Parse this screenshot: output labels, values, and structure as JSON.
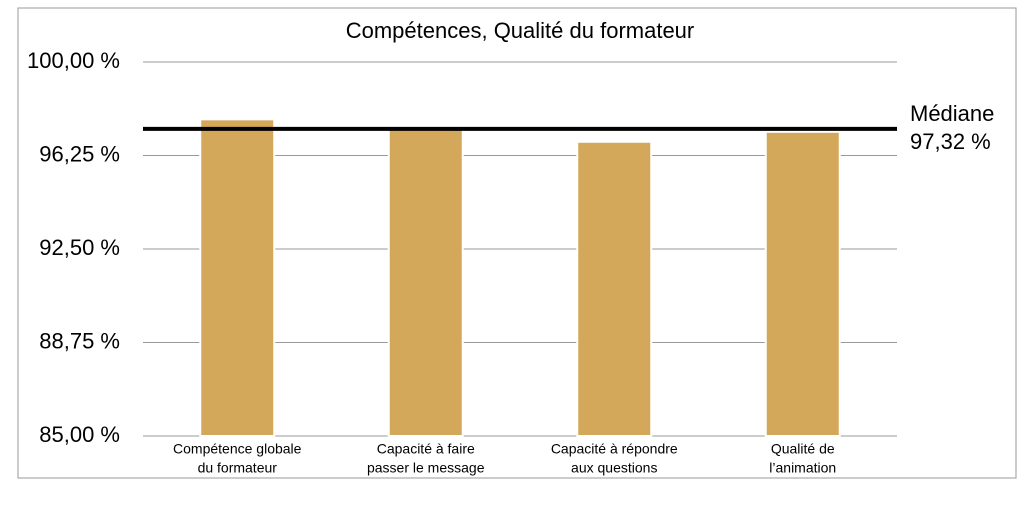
{
  "chart_data": {
    "type": "bar",
    "title": "Compétences, Qualité du formateur",
    "categories": [
      [
        "Compétence globale",
        "du formateur"
      ],
      [
        "Capacité à faire",
        "passer le message"
      ],
      [
        "Capacité à répondre",
        "aux questions"
      ],
      [
        "Qualité de",
        "l’animation"
      ]
    ],
    "values": [
      97.7,
      97.3,
      96.8,
      97.2
    ],
    "color": "#d4a85a",
    "ylim": [
      85,
      100
    ],
    "yticks": [
      {
        "value": 85,
        "label": "85,00 %"
      },
      {
        "value": 88.75,
        "label": "88,75 %"
      },
      {
        "value": 92.5,
        "label": "92,50 %"
      },
      {
        "value": 96.25,
        "label": "96,25 %"
      },
      {
        "value": 100,
        "label": "100,00 %"
      }
    ],
    "grid": true,
    "median": {
      "label": "Médiane",
      "value": 97.32,
      "value_label": "97,32 %"
    }
  }
}
